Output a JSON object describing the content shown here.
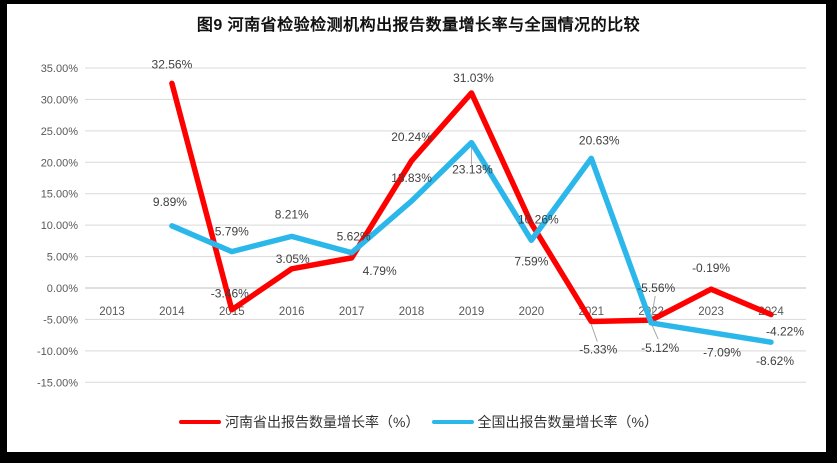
{
  "title": "图9  河南省检验检测机构出报告数量增长率与全国情况的比较",
  "chart_data": {
    "type": "line",
    "title": "图9  河南省检验检测机构出报告数量增长率与全国情况的比较",
    "xlabel": "",
    "ylabel": "",
    "categories": [
      "2013",
      "2014",
      "2015",
      "2016",
      "2017",
      "2018",
      "2019",
      "2020",
      "2021",
      "2022",
      "2023",
      "2024"
    ],
    "series": [
      {
        "name": "河南省出报告数量增长率（%）",
        "color": "#FF0000",
        "values": [
          null,
          32.56,
          -3.46,
          3.05,
          4.79,
          20.24,
          31.03,
          10.26,
          -5.33,
          -5.12,
          -0.19,
          -4.22
        ]
      },
      {
        "name": "全国出报告数量增长率（%）",
        "color": "#2CB7EB",
        "values": [
          null,
          9.89,
          5.79,
          8.21,
          5.62,
          13.83,
          23.13,
          7.59,
          20.63,
          -5.56,
          -7.09,
          -8.62
        ]
      }
    ],
    "ylim": [
      -15,
      35
    ],
    "y_ticks": [
      35,
      30,
      25,
      20,
      15,
      10,
      5,
      0,
      -5,
      -10,
      -15
    ],
    "y_tick_format": "0.00%",
    "grid": true,
    "data_labels": true,
    "legend_position": "bottom"
  },
  "legend": {
    "items": [
      {
        "label": "河南省出报告数量增长率（%）",
        "color": "#FF0000"
      },
      {
        "label": "全国出报告数量增长率（%）",
        "color": "#2CB7EB"
      }
    ]
  },
  "colors": {
    "gridline": "#D9D9D9",
    "axis_line": "#BFBFBF",
    "tick_label": "#595959",
    "data_label": "#404040",
    "leader_line": "#A6A6A6",
    "frame": "#000000"
  }
}
